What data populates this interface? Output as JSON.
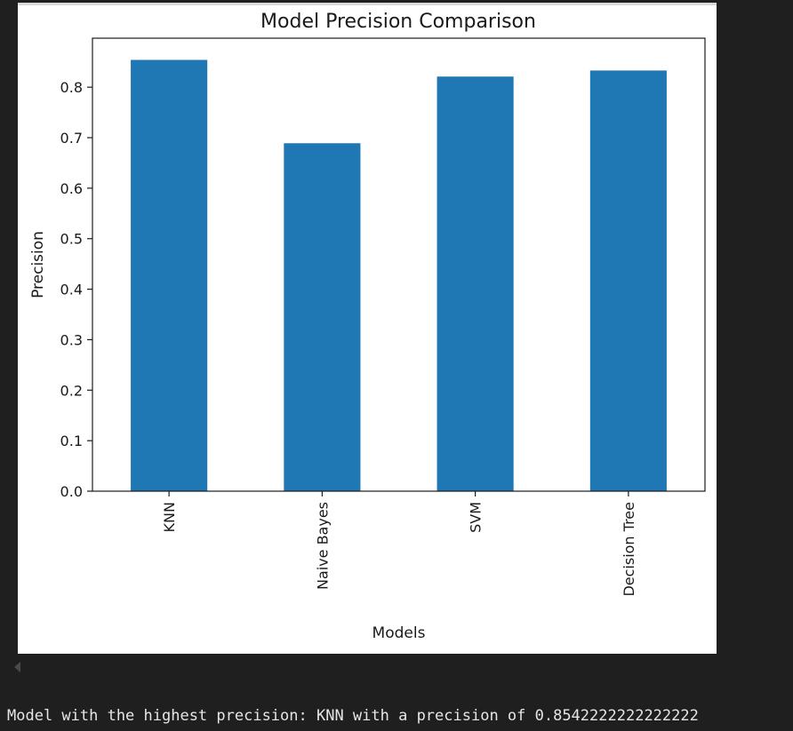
{
  "output": {
    "console_line": "Model with the highest precision: KNN with a precision of 0.8542222222222222"
  },
  "colors": {
    "bar": "#1f77b4",
    "page_background": "#1f1f1f",
    "figure_background": "#ffffff",
    "text": "#e6e6e6"
  },
  "chart_data": {
    "type": "bar",
    "title": "Model Precision Comparison",
    "xlabel": "Models",
    "ylabel": "Precision",
    "categories": [
      "KNN",
      "Naive Bayes",
      "SVM",
      "Decision Tree"
    ],
    "values": [
      0.854,
      0.689,
      0.821,
      0.833
    ],
    "ylim": [
      0,
      0.897
    ],
    "yticks": [
      0.0,
      0.1,
      0.2,
      0.3,
      0.4,
      0.5,
      0.6,
      0.7,
      0.8
    ],
    "ytick_labels": [
      "0.0",
      "0.1",
      "0.2",
      "0.3",
      "0.4",
      "0.5",
      "0.6",
      "0.7",
      "0.8"
    ],
    "xtick_rotation": 90,
    "grid": false,
    "legend": "none"
  }
}
